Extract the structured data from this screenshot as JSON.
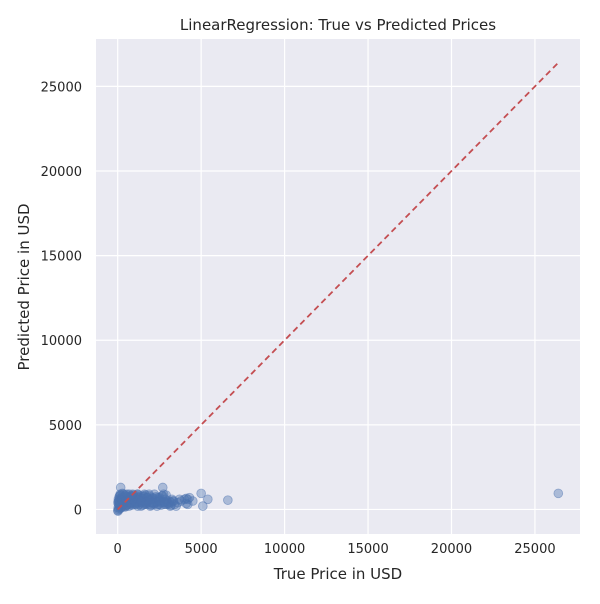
{
  "chart_data": {
    "type": "scatter",
    "title": "LinearRegression: True vs Predicted Prices",
    "xlabel": "True Price in USD",
    "ylabel": "Predicted Price in USD",
    "xlim": [
      -1300,
      27700
    ],
    "ylim": [
      -1450,
      27800
    ],
    "xticks": [
      0,
      5000,
      10000,
      15000,
      20000,
      25000
    ],
    "yticks": [
      0,
      5000,
      10000,
      15000,
      20000,
      25000
    ],
    "grid": true,
    "colors": {
      "background": "#eaeaf2",
      "grid": "#ffffff",
      "points": "#4c72b0",
      "reference_line": "#c44e52"
    },
    "reference_line": {
      "label": "",
      "from": [
        0,
        0
      ],
      "to": [
        26400,
        26400
      ],
      "style": "dashed"
    },
    "points": {
      "x": [
        10,
        30,
        50,
        80,
        120,
        150,
        180,
        200,
        250,
        300,
        350,
        400,
        450,
        500,
        550,
        600,
        650,
        700,
        750,
        800,
        850,
        900,
        950,
        1000,
        1050,
        1100,
        1150,
        1200,
        1250,
        1300,
        1350,
        1400,
        1450,
        1500,
        1550,
        1600,
        1650,
        1700,
        1750,
        1800,
        1850,
        1900,
        1950,
        2000,
        2050,
        2100,
        2150,
        2200,
        2250,
        2300,
        2350,
        2400,
        2450,
        2500,
        2550,
        2600,
        2650,
        2700,
        2750,
        2800,
        2850,
        2900,
        2950,
        3000,
        3050,
        3100,
        3150,
        3200,
        3250,
        3300,
        3400,
        3500,
        3600,
        3700,
        3800,
        4000,
        4100,
        4200,
        4300,
        4500,
        5000,
        5100,
        5400,
        6600,
        26400,
        20,
        60,
        100,
        140,
        200,
        260,
        320,
        380,
        440,
        520,
        600,
        680,
        760,
        840,
        920,
        1000,
        1100,
        1200,
        1300,
        1400,
        1500,
        1600,
        1700,
        1800,
        1900,
        2000,
        2200,
        2400,
        2600,
        2800,
        3000,
        3200,
        40,
        90,
        130,
        170,
        220,
        280,
        340,
        420,
        480,
        560,
        640,
        720,
        800,
        880,
        960,
        1080,
        1180,
        1280,
        1380,
        1480,
        1580,
        1680,
        1780,
        1880,
        2100,
        2300,
        2500,
        2700,
        2900,
        4100,
        4200,
        15,
        45,
        75,
        110,
        160,
        240,
        310,
        390,
        470,
        580,
        700,
        820,
        940,
        1060,
        1240,
        1420,
        1640,
        1880,
        2120,
        2460,
        2780,
        3350
      ],
      "y": [
        -50,
        100,
        300,
        500,
        800,
        900,
        1300,
        600,
        700,
        300,
        900,
        500,
        800,
        200,
        900,
        400,
        700,
        900,
        300,
        600,
        800,
        900,
        500,
        400,
        700,
        300,
        800,
        900,
        600,
        400,
        700,
        200,
        500,
        600,
        800,
        900,
        400,
        300,
        700,
        500,
        600,
        800,
        200,
        400,
        600,
        700,
        300,
        900,
        500,
        400,
        200,
        700,
        600,
        300,
        500,
        400,
        800,
        1300,
        900,
        400,
        600,
        300,
        500,
        400,
        300,
        500,
        200,
        400,
        600,
        500,
        300,
        200,
        400,
        600,
        500,
        600,
        350,
        300,
        700,
        500,
        950,
        200,
        600,
        550,
        950,
        -100,
        0,
        200,
        50,
        100,
        150,
        250,
        200,
        150,
        250,
        300,
        200,
        350,
        250,
        400,
        300,
        350,
        200,
        300,
        400,
        250,
        300,
        350,
        450,
        300,
        250,
        350,
        300,
        250,
        300,
        350,
        250,
        600,
        750,
        650,
        850,
        550,
        950,
        750,
        650,
        850,
        750,
        600,
        700,
        800,
        750,
        850,
        650,
        900,
        700,
        800,
        650,
        750,
        850,
        700,
        900,
        650,
        750,
        700,
        800,
        850,
        650,
        600,
        400,
        500,
        350,
        450,
        300,
        550,
        450,
        350,
        500,
        450,
        550,
        400,
        600,
        450,
        550,
        500,
        450,
        550,
        400,
        500,
        450,
        500
      ]
    }
  }
}
